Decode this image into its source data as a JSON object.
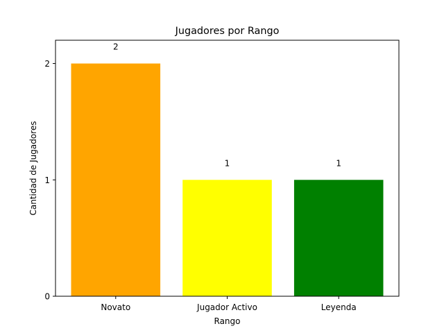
{
  "chart_data": {
    "type": "bar",
    "title": "Jugadores por Rango",
    "xlabel": "Rango",
    "ylabel": "Cantidad de Jugadores",
    "categories": [
      "Novato",
      "Jugador Activo",
      "Leyenda"
    ],
    "values": [
      2,
      1,
      1
    ],
    "bar_colors": [
      "#ffa500",
      "#ffff00",
      "#008000"
    ],
    "data_labels": [
      "2",
      "1",
      "1"
    ],
    "yticks": [
      0,
      1,
      2
    ],
    "ytick_labels": [
      "0",
      "1",
      "2"
    ],
    "ylim": [
      0,
      2.2
    ],
    "grid": false,
    "legend": false
  }
}
